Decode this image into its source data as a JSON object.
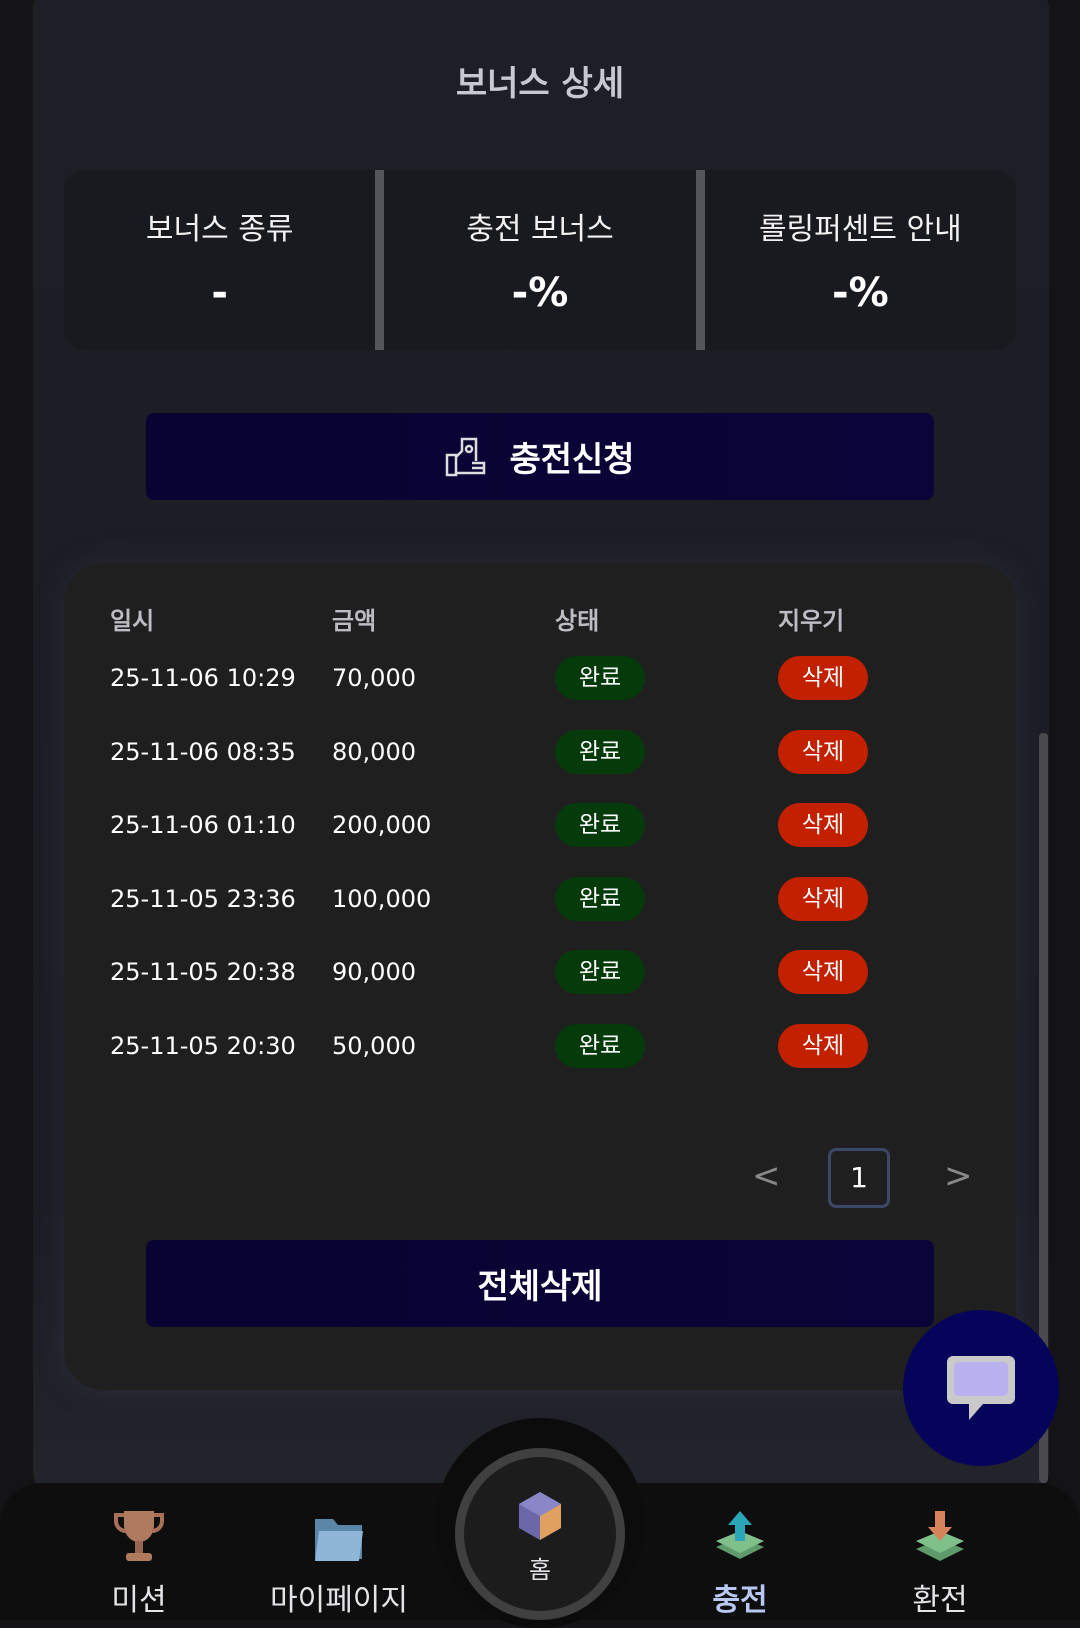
{
  "title": "보너스 상세",
  "info": [
    {
      "label": "보너스 종류",
      "value": "-"
    },
    {
      "label": "충전 보너스",
      "value": "-%"
    },
    {
      "label": "롤링퍼센트 안내",
      "value": "-%"
    }
  ],
  "apply_button": "충전신청",
  "table": {
    "headers": [
      "일시",
      "금액",
      "상태",
      "지우기"
    ],
    "rows": [
      {
        "date": "25-11-06 10:29",
        "amount": "70,000",
        "status": "완료",
        "action": "삭제"
      },
      {
        "date": "25-11-06 08:35",
        "amount": "80,000",
        "status": "완료",
        "action": "삭제"
      },
      {
        "date": "25-11-06 01:10",
        "amount": "200,000",
        "status": "완료",
        "action": "삭제"
      },
      {
        "date": "25-11-05 23:36",
        "amount": "100,000",
        "status": "완료",
        "action": "삭제"
      },
      {
        "date": "25-11-05 20:38",
        "amount": "90,000",
        "status": "완료",
        "action": "삭제"
      },
      {
        "date": "25-11-05 20:30",
        "amount": "50,000",
        "status": "완료",
        "action": "삭제"
      }
    ]
  },
  "pagination": {
    "prev": "<",
    "current": "1",
    "next": ">"
  },
  "delete_all_button": "전체삭제",
  "nav": [
    {
      "label": "미션",
      "icon": "trophy-icon"
    },
    {
      "label": "마이페이지",
      "icon": "folder-icon"
    },
    {
      "label": "홈",
      "icon": "casino-dice-icon"
    },
    {
      "label": "충전",
      "icon": "deposit-money-icon",
      "active": true
    },
    {
      "label": "환전",
      "icon": "withdraw-money-icon"
    }
  ],
  "colors": {
    "button": "#0a0438",
    "complete": "#053b0b",
    "delete": "#c32000",
    "chat": "#06045a",
    "nav_active": "#b9c8f2"
  }
}
